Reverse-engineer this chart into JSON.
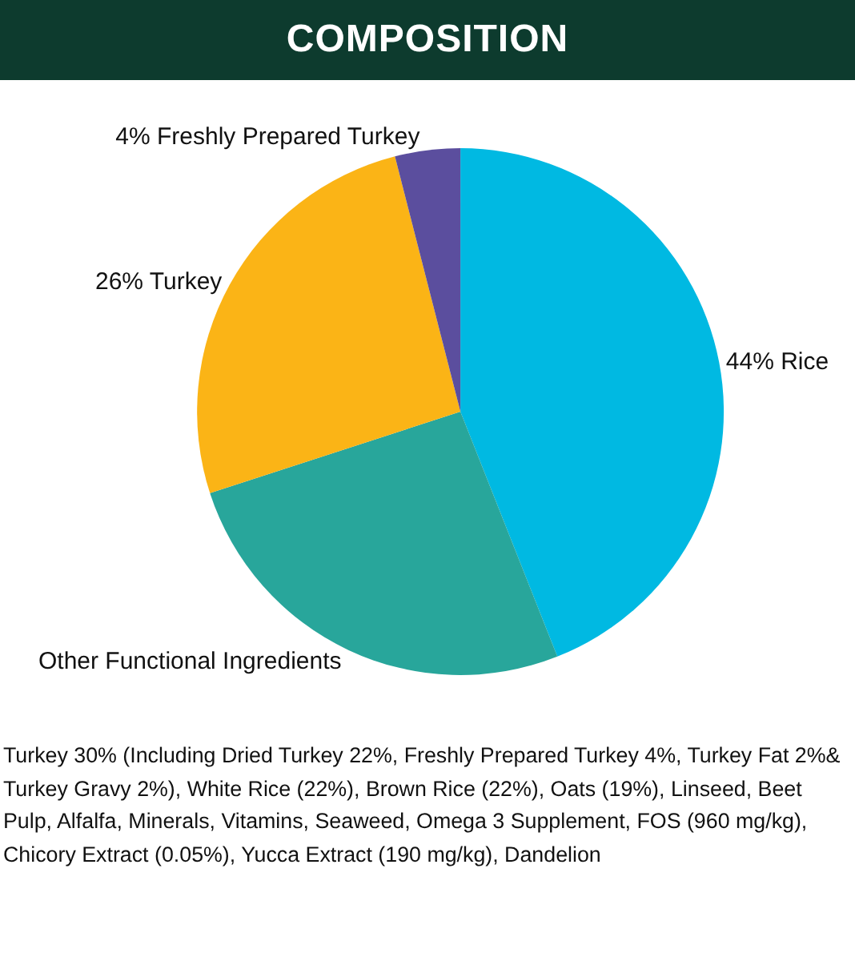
{
  "chart_data": {
    "type": "pie",
    "title": "COMPOSITION",
    "categories": [
      "Rice",
      "Other Functional Ingredients",
      "Turkey",
      "Freshly Prepared Turkey"
    ],
    "values": [
      44,
      26,
      26,
      4
    ],
    "value_labels": [
      "44%",
      null,
      "26%",
      "4%"
    ],
    "colors": [
      "#00b9e2",
      "#28a69b",
      "#fbb416",
      "#5b4e9e"
    ],
    "legend": false,
    "annotations": [
      "Turkey 30% (Including Dried Turkey 22%, Freshly Prepared Turkey 4%, Turkey Fat 2%& Turkey Gravy 2%), White Rice (22%), Brown Rice (22%), Oats (19%), Linseed, Beet Pulp, Alfalfa, Minerals, Vitamins, Seaweed, Omega 3 Supplement, FOS (960 mg/kg),  Chicory Extract (0.05%), Yucca Extract  (190 mg/kg), Dandelion"
    ]
  }
}
